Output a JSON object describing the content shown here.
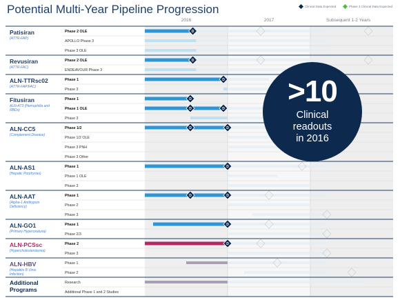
{
  "title": "Potential Multi-Year Pipeline Progression",
  "legend": {
    "clinical": "Clinical Data Expected",
    "phase3": "Phase 3 Clinical Data Expected"
  },
  "callout": {
    "big": ">10",
    "line1": "Clinical",
    "line2": "readouts",
    "line3": "in 2016"
  },
  "colors": {
    "blue_bar": "#2f96d4",
    "light_bar": "#bfdff3",
    "pink_bar": "#b02a62",
    "light_pink": "#f2c8d8",
    "gray_bar": "#a99fb5",
    "navy": "#0d2a4e"
  },
  "chart_data": {
    "type": "gantt",
    "years": [
      "2016",
      "2017",
      "Subsequent 1-2 Years"
    ],
    "programs": [
      {
        "name": "Patisiran",
        "sub": "(ATTR-FAP)",
        "color": "#1f3f66",
        "phases": [
          {
            "label": "Phase 2 OLE",
            "bold": true,
            "bar": [
              0,
              0.58
            ],
            "color": "blue",
            "marks": [
              0.58
            ],
            "fade": [
              0.58,
              2.2
            ],
            "ghost": [
              1.4,
              2.7
            ]
          },
          {
            "label": "APOLLO Phase 3",
            "bar": [
              0,
              0.62
            ],
            "color": "light",
            "marks": [],
            "fade": [
              0.62,
              2.2
            ],
            "ghost": []
          },
          {
            "label": "Phase 3 OLE",
            "bar": [
              0,
              0.62
            ],
            "color": "light",
            "marks": [],
            "fade": [
              0.62,
              2.2
            ],
            "ghost": []
          }
        ]
      },
      {
        "name": "Revusiran",
        "sub": "(ATTR-FAC)",
        "color": "#1f3f66",
        "phases": [
          {
            "label": "Phase 2 OLE",
            "bold": true,
            "bar": [
              0,
              0.58
            ],
            "color": "blue",
            "marks": [
              0.58
            ],
            "fade": [
              0.58,
              2.2
            ],
            "ghost": [
              1.4,
              2.7
            ]
          },
          {
            "label": "ENDEAVOUR Phase 3",
            "bar": [
              0,
              0.62
            ],
            "color": "light",
            "marks": [],
            "fade": [
              0.62,
              2.2
            ],
            "ghost": []
          }
        ]
      },
      {
        "name": "ALN-TTRsc02",
        "sub": "(ATTR-FAP/FAC)",
        "color": "#1f3f66",
        "phases": [
          {
            "label": "Phase 1",
            "bold": true,
            "bar": [
              0,
              0.95
            ],
            "color": "blue",
            "marks": [
              0.95
            ],
            "fade": [
              0.95,
              1.5
            ],
            "ghost": []
          },
          {
            "label": "Phase 3",
            "bar": [
              0.95,
              1.0
            ],
            "color": "light",
            "marks": [],
            "fade": [
              1.0,
              1.6
            ],
            "ghost": []
          }
        ]
      },
      {
        "name": "Fitusiran",
        "sub": "ALN-AT3 (Hemophilia and RBDs)",
        "color": "#1f3f66",
        "phases": [
          {
            "label": "Phase 1",
            "bold": true,
            "bar": [
              0,
              0.55
            ],
            "color": "blue",
            "marks": [
              0.55
            ],
            "fade": [],
            "ghost": []
          },
          {
            "label": "Phase 1 OLE",
            "bold": true,
            "bar": [
              0,
              0.95
            ],
            "color": "blue",
            "marks": [
              0.55,
              0.95
            ],
            "fade": [
              0.95,
              1.5
            ],
            "ghost": []
          },
          {
            "label": "Phase 3",
            "bar": [
              0.55,
              1.0
            ],
            "color": "light",
            "marks": [],
            "fade": [
              1.0,
              1.6
            ],
            "ghost": []
          }
        ]
      },
      {
        "name": "ALN-CC5",
        "sub": "(Complement Disease)",
        "color": "#1f3f66",
        "phases": [
          {
            "label": "Phase 1/2",
            "bold": true,
            "bar": [
              0,
              1.0
            ],
            "color": "blue",
            "marks": [
              0.55,
              1.0
            ],
            "fade": [
              1.0,
              1.5
            ],
            "ghost": []
          },
          {
            "label": "Phase 1/2 OLE",
            "bar": [],
            "color": "light",
            "marks": [],
            "fade": [
              1.0,
              1.5
            ],
            "ghost": []
          },
          {
            "label": "Phase 3 PNH",
            "bar": [],
            "color": "light",
            "marks": [],
            "fade": [
              1.0,
              1.7
            ],
            "ghost": []
          },
          {
            "label": "Phase 3 Other",
            "bar": [],
            "color": "light",
            "marks": [],
            "fade": [],
            "ghost": []
          }
        ]
      },
      {
        "name": "ALN-AS1",
        "sub": "(Hepatic Porphyrias)",
        "color": "#1f3f66",
        "phases": [
          {
            "label": "Phase 1",
            "bold": true,
            "bar": [
              0,
              1.0
            ],
            "color": "blue",
            "marks": [
              1.0
            ],
            "fade": [
              1.0,
              2.2
            ],
            "ghost": [
              1.9
            ]
          },
          {
            "label": "Phase 1 OLE",
            "bar": [],
            "color": "light",
            "marks": [],
            "fade": [
              1.0,
              1.6
            ],
            "ghost": []
          },
          {
            "label": "Phase 3",
            "bar": [],
            "color": "light",
            "marks": [],
            "fade": [
              1.0,
              2.0
            ],
            "ghost": []
          }
        ]
      },
      {
        "name": "ALN-AAT",
        "sub": "(Alpha-1 Antitrypsin Deficiency)",
        "color": "#1f3f66",
        "phases": [
          {
            "label": "Phase 1",
            "bold": true,
            "bar": [
              0,
              1.0
            ],
            "color": "blue",
            "marks": [
              0.55,
              1.0
            ],
            "fade": [
              1.0,
              2.2
            ],
            "ghost": [
              1.5
            ]
          },
          {
            "label": "Phase 2",
            "bar": [],
            "color": "light",
            "marks": [],
            "fade": [
              1.0,
              2.0
            ],
            "ghost": []
          },
          {
            "label": "Phase 3",
            "bar": [],
            "color": "light",
            "marks": [],
            "fade": [
              1.3,
              2.2
            ],
            "ghost": [
              2.2
            ]
          }
        ]
      },
      {
        "name": "ALN-GO1",
        "sub": "(Primary Hyperoxaluria)",
        "color": "#1f3f66",
        "phases": [
          {
            "label": "Phase 1",
            "bold": true,
            "bar": [
              0.1,
              1.0
            ],
            "color": "blue",
            "marks": [
              1.0
            ],
            "fade": [
              1.0,
              2.2
            ],
            "ghost": [
              1.5
            ]
          },
          {
            "label": "Phase 2/3",
            "bar": [],
            "color": "light",
            "marks": [],
            "fade": [
              1.0,
              2.2
            ],
            "ghost": [
              2.2
            ]
          }
        ]
      },
      {
        "name": "ALN-PCSsc",
        "sub": "(Hypercholesterolemia)",
        "color": "#b02a62",
        "phases": [
          {
            "label": "Phase 2",
            "bold": true,
            "bar": [
              0,
              1.0
            ],
            "color": "pink",
            "marks": [
              1.0
            ],
            "fade": [
              1.0,
              2.2
            ],
            "ghost": [
              1.4
            ]
          },
          {
            "label": "Phase 3",
            "bar": [],
            "color": "light",
            "marks": [],
            "fade": [
              1.0,
              2.2
            ],
            "ghost": [
              2.2
            ]
          }
        ]
      },
      {
        "name": "ALN-HBV",
        "sub": "(Hepatitis B Virus Infection)",
        "color": "#5b4a78",
        "phases": [
          {
            "label": "Phase 1",
            "bar": [
              0.5,
              1.0
            ],
            "color": "gray",
            "marks": [],
            "fade": [
              1.0,
              2.2
            ],
            "ghost": [
              1.6
            ]
          },
          {
            "label": "Phase 2",
            "bar": [],
            "color": "light",
            "marks": [],
            "fade": [
              1.2,
              2.2
            ],
            "ghost": [
              2.5
            ]
          }
        ]
      },
      {
        "name": "Additional Programs",
        "sub": "",
        "color": "#0d2a4e",
        "phases": [
          {
            "label": "Research",
            "bar": [
              0,
              1.0
            ],
            "color": "gray",
            "marks": [],
            "fade": [
              1.0,
              2.7
            ],
            "ghost": []
          },
          {
            "label": "Additional Phase 1 and 2 Studies",
            "bar": [],
            "color": "light",
            "marks": [],
            "fade": [],
            "ghost": []
          }
        ]
      }
    ]
  }
}
